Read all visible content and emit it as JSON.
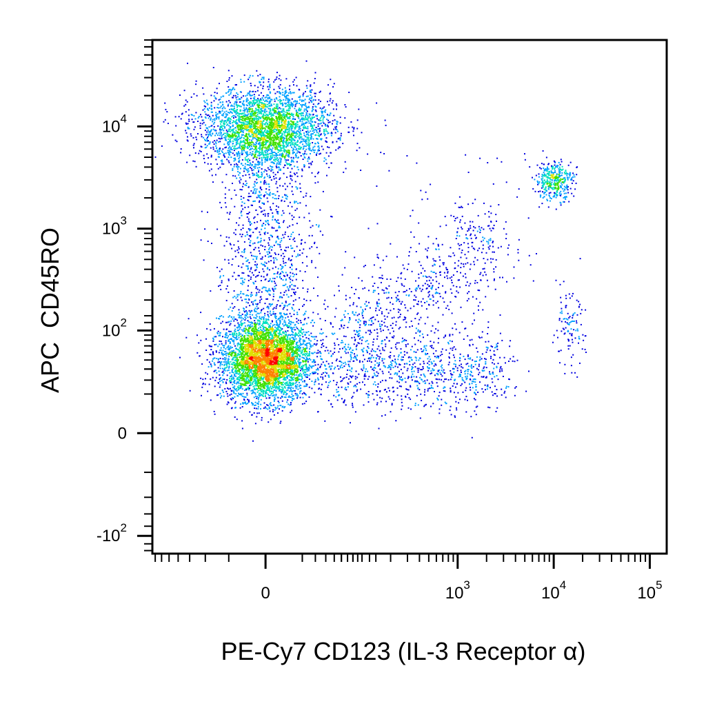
{
  "chart_data": {
    "type": "scatter",
    "style": "flow cytometry pseudocolor density dot plot",
    "title": "",
    "xlabel": "PE-Cy7 CD123 (IL-3 Receptor α)",
    "ylabel": "APC  CD45RO",
    "x_scale": "biexponential",
    "y_scale": "biexponential",
    "xlim": [
      -150,
      150000
    ],
    "ylim": [
      -150,
      70000
    ],
    "x_ticks": [
      {
        "value": 0,
        "base": "0",
        "exp": ""
      },
      {
        "value": 1000,
        "base": "10",
        "exp": "3"
      },
      {
        "value": 10000,
        "base": "10",
        "exp": "4"
      },
      {
        "value": 100000,
        "base": "10",
        "exp": "5"
      }
    ],
    "y_ticks": [
      {
        "value": -100,
        "base": "-10",
        "exp": "2"
      },
      {
        "value": 0,
        "base": "0",
        "exp": ""
      },
      {
        "value": 100,
        "base": "10",
        "exp": "2"
      },
      {
        "value": 1000,
        "base": "10",
        "exp": "3"
      },
      {
        "value": 10000,
        "base": "10",
        "exp": "4"
      }
    ],
    "grid": false,
    "legend": "none",
    "density_colors": [
      "#0000e0",
      "#00a0ff",
      "#00e0c0",
      "#40e000",
      "#e0e000",
      "#ff8000",
      "#ff0000"
    ],
    "populations": [
      {
        "label": "CD45RO high, CD123 negative",
        "x_center": 0,
        "y_center": 10000,
        "relative_size": "large"
      },
      {
        "label": "CD45RO negative, CD123 negative",
        "x_center": 0,
        "y_center": 50,
        "relative_size": "largest"
      },
      {
        "label": "CD45RO high, CD123 high",
        "x_center": 10000,
        "y_center": 3000,
        "relative_size": "small"
      },
      {
        "label": "CD45RO low, CD123 high",
        "x_center": 14000,
        "y_center": 100,
        "relative_size": "very small"
      }
    ]
  }
}
